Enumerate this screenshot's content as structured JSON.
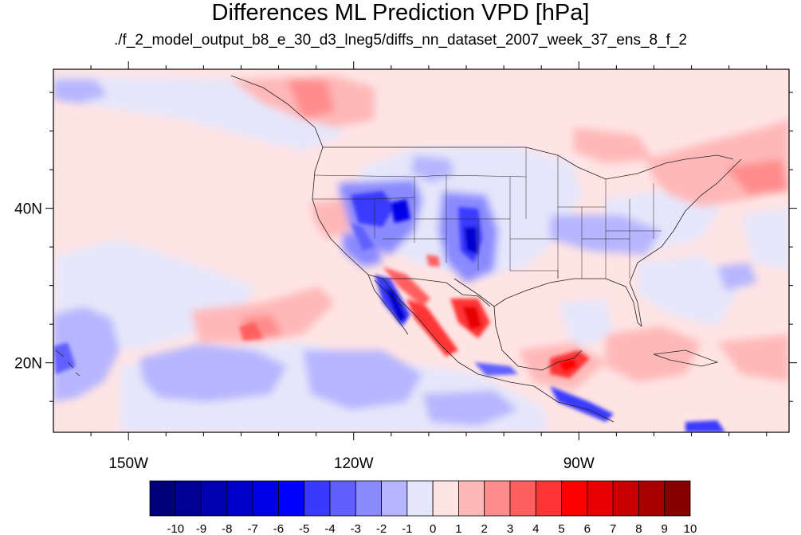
{
  "figure": {
    "title": "Differences ML Prediction VPD [hPa]",
    "subtitle": "./f_2_model_output_b8_e_30_d3_lneg5/diffs_nn_dataset_2007_week_37_ens_8_f_2"
  },
  "map": {
    "projection": "cylindrical-equidistant",
    "lon_range": [
      -160,
      -62
    ],
    "lat_range": [
      11,
      58
    ],
    "lon_ticks": [
      {
        "lon": -150,
        "label": "150W"
      },
      {
        "lon": -120,
        "label": "120W"
      },
      {
        "lon": -90,
        "label": "90W"
      }
    ],
    "lat_ticks": [
      {
        "lat": 40,
        "label": "40N"
      },
      {
        "lat": 20,
        "label": "20N"
      }
    ],
    "features": [
      "coastlines",
      "us-state-boundaries",
      "country-boundaries"
    ],
    "field": "VPD difference (hPa)"
  },
  "colorbar": {
    "labels": [
      "-10",
      "-9",
      "-8",
      "-7",
      "-6",
      "-5",
      "-4",
      "-3",
      "-2",
      "-1",
      "0",
      "1",
      "2",
      "3",
      "4",
      "5",
      "6",
      "7",
      "8",
      "9",
      "10"
    ],
    "colors": [
      "#00007a",
      "#000095",
      "#0000b0",
      "#0000cc",
      "#0000e6",
      "#0000ff",
      "#3a3aff",
      "#6060ff",
      "#8a8aff",
      "#b6b6ff",
      "#e6e6fa",
      "#ffe4e4",
      "#ffb8b8",
      "#ff8c8c",
      "#ff5f5f",
      "#ff3434",
      "#ff0000",
      "#e60000",
      "#c80000",
      "#a80000",
      "#880000"
    ]
  }
}
